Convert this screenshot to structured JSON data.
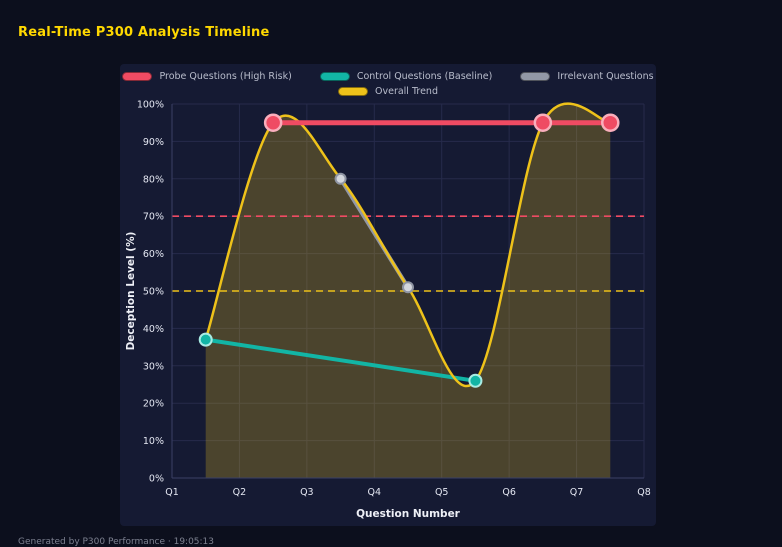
{
  "title": "Real-Time P300 Analysis Timeline",
  "footer": "Generated by P300 Performance · 19:05:13",
  "colors": {
    "title_accent": "#ffd800",
    "page_bg": "#0c0f1d",
    "panel_bg": "#151a33",
    "grid": "#262b4b",
    "axis_line": "#3a4065",
    "tick_text": "#e4e7f2",
    "legend_text": "#b9bdcc",
    "probe": "#ef4b63",
    "control": "#12b5a5",
    "irrelevant": "#9298a6",
    "trend": "#eec21a"
  },
  "chart_data": {
    "type": "line",
    "title": "Real-Time P300 Analysis Timeline",
    "xlabel": "Question Number",
    "ylabel": "Deception Level (%)",
    "x_range": [
      1,
      8
    ],
    "x_tick_labels": [
      "Q1",
      "Q2",
      "Q3",
      "Q4",
      "Q5",
      "Q6",
      "Q7",
      "Q8"
    ],
    "ylim": [
      0,
      100
    ],
    "y_tick_step": 10,
    "y_tick_suffix": "%",
    "grid": true,
    "legend_position": "top",
    "series": [
      {
        "key": "probe",
        "name": "Probe Questions (High Risk)",
        "color": "#ef4b63",
        "x": [
          2.5,
          6.5,
          7.5
        ],
        "y": [
          95,
          95,
          95
        ],
        "line_width": 5,
        "smooth": false,
        "marker": {
          "r": 8,
          "fill": "#ef4b63",
          "stroke": "#f9aebc",
          "stroke_width": 2.5
        }
      },
      {
        "key": "control",
        "name": "Control Questions (Baseline)",
        "color": "#12b5a5",
        "x": [
          1.5,
          5.5
        ],
        "y": [
          37,
          26
        ],
        "line_width": 4,
        "smooth": false,
        "marker": {
          "r": 6,
          "fill": "#12b5a5",
          "stroke": "#a8ece4",
          "stroke_width": 2
        }
      },
      {
        "key": "irrelevant",
        "name": "Irrelevant Questions",
        "color": "#9298a6",
        "x": [
          3.5,
          4.5
        ],
        "y": [
          80,
          51
        ],
        "line_width": 4,
        "smooth": false,
        "marker": {
          "r": 5,
          "fill": "#d3d6dd",
          "stroke": "#8f95a3",
          "stroke_width": 2
        }
      },
      {
        "key": "trend",
        "name": "Overall Trend",
        "color": "#eec21a",
        "x": [
          1.5,
          2.5,
          3.5,
          4.5,
          5.5,
          6.5,
          7.5
        ],
        "y": [
          37,
          95,
          80,
          51,
          26,
          95,
          95
        ],
        "line_width": 2.5,
        "smooth": true,
        "area_fill": "rgba(238,194,26,0.25)"
      }
    ],
    "thresholds": [
      {
        "value": 70,
        "color": "#ef4b63",
        "dash": "7 5"
      },
      {
        "value": 50,
        "color": "#eec21a",
        "dash": "7 5"
      }
    ]
  }
}
